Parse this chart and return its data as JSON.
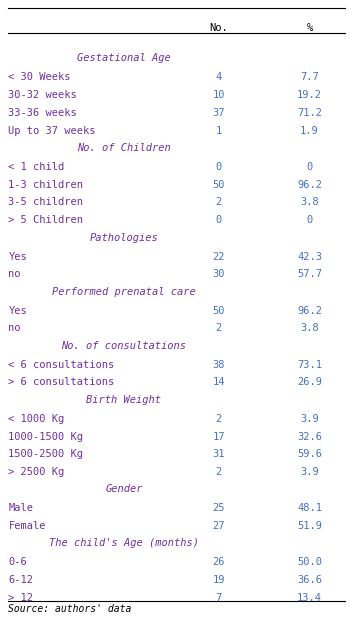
{
  "title_col1": "No.",
  "title_col2": "%",
  "sections": [
    {
      "header": "Gestational Age",
      "rows": [
        {
          "label": "< 30 Weeks",
          "no": "4",
          "pct": "7.7"
        },
        {
          "label": "30-32 weeks",
          "no": "10",
          "pct": "19.2"
        },
        {
          "label": "33-36 weeks",
          "no": "37",
          "pct": "71.2"
        },
        {
          "label": "Up to 37 weeks",
          "no": "1",
          "pct": "1.9"
        }
      ]
    },
    {
      "header": "No. of Children",
      "rows": [
        {
          "label": "< 1 child",
          "no": "0",
          "pct": "0"
        },
        {
          "label": "1-3 children",
          "no": "50",
          "pct": "96.2"
        },
        {
          "label": "3-5 children",
          "no": "2",
          "pct": "3.8"
        },
        {
          "label": "> 5 Children",
          "no": "0",
          "pct": "0"
        }
      ]
    },
    {
      "header": "Pathologies",
      "rows": [
        {
          "label": "Yes",
          "no": "22",
          "pct": "42.3"
        },
        {
          "label": "no",
          "no": "30",
          "pct": "57.7"
        }
      ]
    },
    {
      "header": "Performed prenatal care",
      "rows": [
        {
          "label": "Yes",
          "no": "50",
          "pct": "96.2"
        },
        {
          "label": "no",
          "no": "2",
          "pct": "3.8"
        }
      ]
    },
    {
      "header": "No. of consultations",
      "rows": [
        {
          "label": "< 6 consultations",
          "no": "38",
          "pct": "73.1"
        },
        {
          "label": "> 6 consultations",
          "no": "14",
          "pct": "26.9"
        }
      ]
    },
    {
      "header": "Birth Weight",
      "rows": [
        {
          "label": "< 1000 Kg",
          "no": "2",
          "pct": "3.9"
        },
        {
          "label": "1000-1500 Kg",
          "no": "17",
          "pct": "32.6"
        },
        {
          "label": "1500-2500 Kg",
          "no": "31",
          "pct": "59.6"
        },
        {
          "label": "> 2500 Kg",
          "no": "2",
          "pct": "3.9"
        }
      ]
    },
    {
      "header": "Gender",
      "rows": [
        {
          "label": "Male",
          "no": "25",
          "pct": "48.1"
        },
        {
          "label": "Female",
          "no": "27",
          "pct": "51.9"
        }
      ]
    },
    {
      "header": "The child's Age (months)",
      "rows": [
        {
          "label": "0-6",
          "no": "26",
          "pct": "50.0"
        },
        {
          "label": "6-12",
          "no": "19",
          "pct": "36.6"
        },
        {
          "label": "> 12",
          "no": "7",
          "pct": "13.4"
        }
      ]
    }
  ],
  "footer": "Source: authors' data",
  "header_color": "#7030a0",
  "label_color": "#7030a0",
  "data_color": "#4472c4",
  "header_font_color": "#7030a0",
  "bg_color": "#ffffff",
  "font_size": 7.5,
  "header_font_size": 7.5
}
